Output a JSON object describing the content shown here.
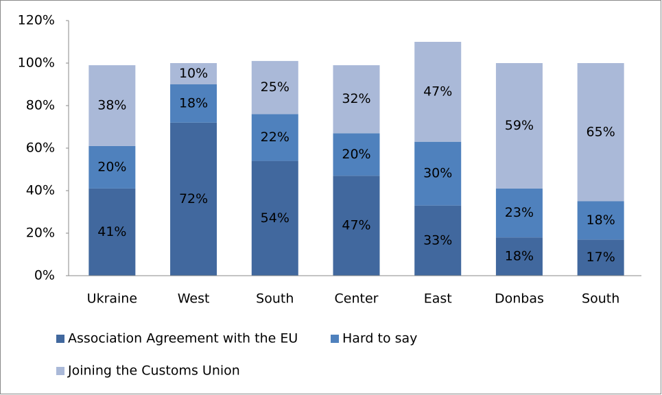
{
  "chart_data": {
    "type": "stacked_bar",
    "categories": [
      "Ukraine",
      "West",
      "South",
      "Center",
      "East",
      "Donbas",
      "South"
    ],
    "series": [
      {
        "name": "Association Agreement with the EU",
        "color": "#41689e",
        "values": [
          41,
          72,
          54,
          47,
          33,
          18,
          17
        ],
        "value_labels": [
          "41%",
          "72%",
          "54%",
          "47%",
          "33%",
          "18%",
          "17%"
        ]
      },
      {
        "name": "Hard to say",
        "color": "#4f81bd",
        "values": [
          20,
          18,
          22,
          20,
          30,
          23,
          18
        ],
        "value_labels": [
          "20%",
          "18%",
          "22%",
          "20%",
          "30%",
          "23%",
          "18%"
        ]
      },
      {
        "name": "Joining the Customs Union",
        "color": "#aab9d8",
        "values": [
          38,
          10,
          25,
          32,
          47,
          59,
          65
        ],
        "value_labels": [
          "38%",
          "10%",
          "25%",
          "32%",
          "47%",
          "59%",
          "65%"
        ]
      }
    ],
    "ylim": [
      0,
      120
    ],
    "yticks": [
      {
        "value": 0,
        "label": "0%"
      },
      {
        "value": 20,
        "label": "20%"
      },
      {
        "value": 40,
        "label": "40%"
      },
      {
        "value": 60,
        "label": "60%"
      },
      {
        "value": 80,
        "label": "80%"
      },
      {
        "value": 100,
        "label": "100%"
      },
      {
        "value": 120,
        "label": "120%"
      }
    ],
    "grid": false,
    "legend": "bottom"
  }
}
